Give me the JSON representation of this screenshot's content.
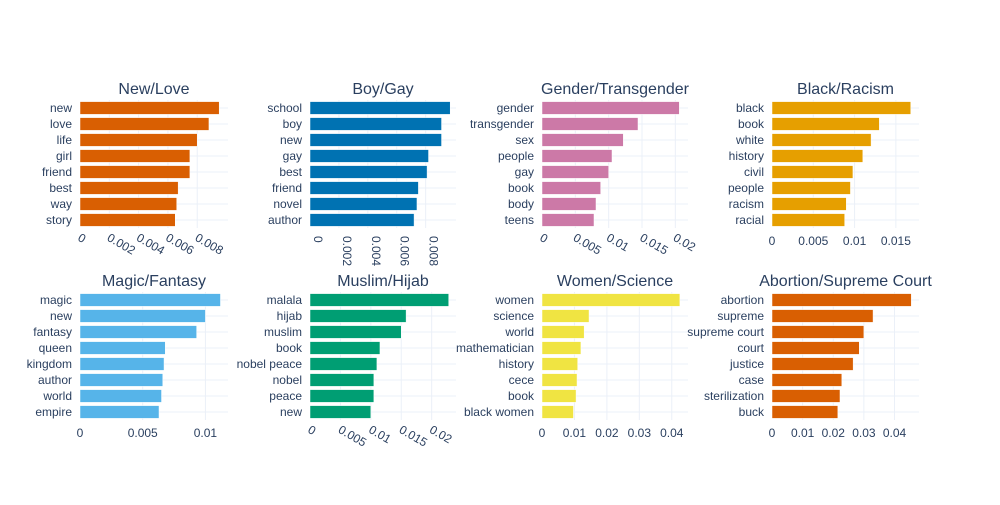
{
  "chart_data": [
    {
      "type": "bar",
      "orientation": "horizontal",
      "title": "New/Love",
      "color": "#d95f02",
      "categories": [
        "new",
        "love",
        "life",
        "girl",
        "friend",
        "best",
        "way",
        "story"
      ],
      "values": [
        0.0095,
        0.0088,
        0.008,
        0.0075,
        0.0075,
        0.0067,
        0.0066,
        0.0065
      ],
      "xlim": [
        0,
        0.0101
      ],
      "ticks": [
        0,
        0.002,
        0.004,
        0.006,
        0.008
      ],
      "tick_labels": [
        "0",
        "0.002",
        "0.004",
        "0.006",
        "0.008"
      ],
      "tick_angle": 30,
      "grid": true
    },
    {
      "type": "bar",
      "orientation": "horizontal",
      "title": "Boy/Gay",
      "color": "#0072b2",
      "categories": [
        "school",
        "boy",
        "new",
        "gay",
        "best",
        "friend",
        "novel",
        "author"
      ],
      "values": [
        0.0097,
        0.0091,
        0.0091,
        0.0082,
        0.0081,
        0.0075,
        0.0074,
        0.0072
      ],
      "xlim": [
        0,
        0.0101
      ],
      "ticks": [
        0,
        0.002,
        0.004,
        0.006,
        0.008
      ],
      "tick_labels": [
        "0",
        "0.002",
        "0.004",
        "0.006",
        "0.008"
      ],
      "tick_angle": 90,
      "grid": true
    },
    {
      "type": "bar",
      "orientation": "horizontal",
      "title": "Gender/Transgender",
      "color": "#cc79a7",
      "categories": [
        "gender",
        "transgender",
        "sex",
        "people",
        "gay",
        "book",
        "body",
        "teens"
      ],
      "values": [
        0.0206,
        0.0144,
        0.0122,
        0.0105,
        0.01,
        0.0088,
        0.0081,
        0.0078
      ],
      "xlim": [
        0,
        0.0219
      ],
      "ticks": [
        0,
        0.005,
        0.01,
        0.015,
        0.02
      ],
      "tick_labels": [
        "0",
        "0.005",
        "0.01",
        "0.015",
        "0.02"
      ],
      "tick_angle": 30,
      "grid": true
    },
    {
      "type": "bar",
      "orientation": "horizontal",
      "title": "Black/Racism",
      "color": "#e69f00",
      "categories": [
        "black",
        "book",
        "white",
        "history",
        "civil",
        "people",
        "racism",
        "racial"
      ],
      "values": [
        0.0168,
        0.013,
        0.012,
        0.011,
        0.0098,
        0.0095,
        0.009,
        0.0088
      ],
      "xlim": [
        0,
        0.0178
      ],
      "ticks": [
        0,
        0.005,
        0.01,
        0.015
      ],
      "tick_labels": [
        "0",
        "0.005",
        "0.01",
        "0.015"
      ],
      "tick_angle": 0,
      "grid": true
    },
    {
      "type": "bar",
      "orientation": "horizontal",
      "title": "Magic/Fantasy",
      "color": "#56b4e9",
      "categories": [
        "magic",
        "new",
        "fantasy",
        "queen",
        "kingdom",
        "author",
        "world",
        "empire"
      ],
      "values": [
        0.0112,
        0.01,
        0.0093,
        0.0068,
        0.0067,
        0.0066,
        0.0065,
        0.0063
      ],
      "xlim": [
        0,
        0.0118
      ],
      "ticks": [
        0,
        0.005,
        0.01
      ],
      "tick_labels": [
        "0",
        "0.005",
        "0.01"
      ],
      "tick_angle": 0,
      "grid": true
    },
    {
      "type": "bar",
      "orientation": "horizontal",
      "title": "Muslim/Hijab",
      "color": "#009e73",
      "categories": [
        "malala",
        "hijab",
        "muslim",
        "book",
        "nobel peace",
        "nobel",
        "peace",
        "new"
      ],
      "values": [
        0.0228,
        0.0158,
        0.015,
        0.0115,
        0.011,
        0.0105,
        0.0105,
        0.01
      ],
      "xlim": [
        0,
        0.024
      ],
      "ticks": [
        0,
        0.005,
        0.01,
        0.015,
        0.02
      ],
      "tick_labels": [
        "0",
        "0.005",
        "0.01",
        "0.015",
        "0.02"
      ],
      "tick_angle": 30,
      "grid": true
    },
    {
      "type": "bar",
      "orientation": "horizontal",
      "title": "Women/Science",
      "color": "#f0e442",
      "categories": [
        "women",
        "science",
        "world",
        "mathematician",
        "history",
        "cece",
        "book",
        "black women"
      ],
      "values": [
        0.0425,
        0.0145,
        0.013,
        0.012,
        0.011,
        0.0108,
        0.0105,
        0.0097
      ],
      "xlim": [
        0,
        0.045
      ],
      "ticks": [
        0,
        0.01,
        0.02,
        0.03,
        0.04
      ],
      "tick_labels": [
        "0",
        "0.01",
        "0.02",
        "0.03",
        "0.04"
      ],
      "tick_angle": 0,
      "grid": true
    },
    {
      "type": "bar",
      "orientation": "horizontal",
      "title": "Abortion/Supreme Court",
      "color": "#d95f02",
      "categories": [
        "abortion",
        "supreme",
        "supreme court",
        "court",
        "justice",
        "case",
        "sterilization",
        "buck"
      ],
      "values": [
        0.0455,
        0.033,
        0.03,
        0.0285,
        0.0265,
        0.0228,
        0.0222,
        0.0215
      ],
      "xlim": [
        0,
        0.048
      ],
      "ticks": [
        0,
        0.01,
        0.02,
        0.03,
        0.04
      ],
      "tick_labels": [
        "0",
        "0.01",
        "0.02",
        "0.03",
        "0.04"
      ],
      "tick_angle": 0,
      "grid": true
    }
  ]
}
